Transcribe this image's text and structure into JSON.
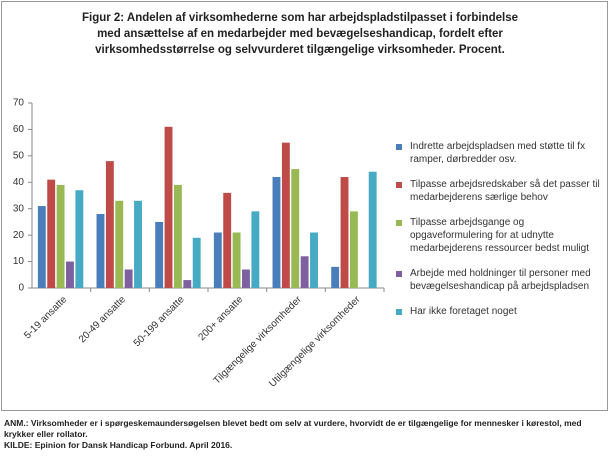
{
  "chart_data": {
    "type": "bar",
    "title": [
      "Figur 2: Andelen af virksomhederne som har arbejdspladstilpasset i forbindelse",
      "med ansættelse af en medarbejder med bevægelseshandicap, fordelt efter",
      "virksomhedsstørrelse og selvvurderet tilgængelige virksomheder. Procent."
    ],
    "categories": [
      "5-19 ansatte",
      "20-49 ansatte",
      "50-199 ansatte",
      "200+ ansatte",
      "Tilgængelige virksomheder",
      "Utilgængelige virksomheder"
    ],
    "series": [
      {
        "name": "Indrette arbejdspladsen med støtte til fx ramper, dørbredder osv.",
        "color": "#4a7ebb",
        "values": [
          31,
          28,
          25,
          21,
          42,
          8
        ]
      },
      {
        "name": "Tilpasse arbejdsredskaber så det passer til medarbejderens særlige behov",
        "color": "#be4b48",
        "values": [
          41,
          48,
          61,
          36,
          55,
          42
        ]
      },
      {
        "name": "Tilpasse arbejdsgange og opgaveformulering for at udnytte medarbejderens ressourcer bedst muligt",
        "color": "#98b954",
        "values": [
          39,
          33,
          39,
          21,
          45,
          29
        ]
      },
      {
        "name": "Arbejde med holdninger til personer med bevægelseshandicap på arbejdspladsen",
        "color": "#7d60a0",
        "values": [
          10,
          7,
          3,
          7,
          12,
          0
        ]
      },
      {
        "name": "Har ikke foretaget noget",
        "color": "#46aac5",
        "values": [
          37,
          33,
          19,
          29,
          21,
          44
        ]
      }
    ],
    "ylim": [
      0,
      70
    ],
    "yticks": [
      0,
      10,
      20,
      30,
      40,
      50,
      60,
      70
    ],
    "grid": false,
    "notes": [
      "ANM.: Virksomheder er i spørgeskemaundersøgelsen blevet bedt om selv at vurdere, hvorvidt de er tilgængelige for mennesker i kørestol, med krykker eller rollator.",
      "KILDE: Epinion for Dansk Handicap Forbund. April 2016."
    ]
  }
}
